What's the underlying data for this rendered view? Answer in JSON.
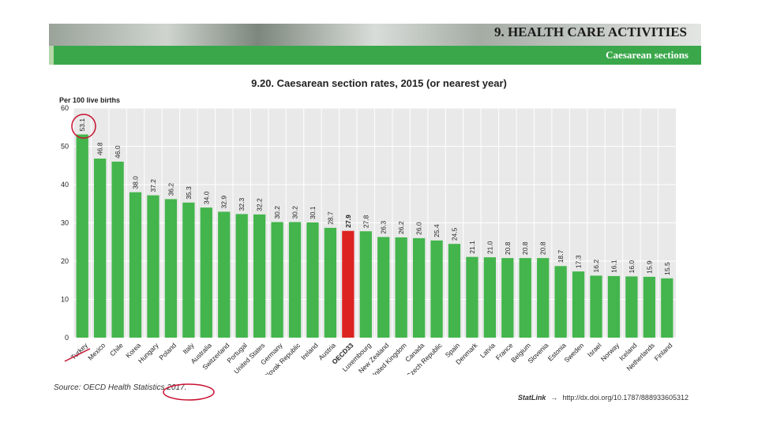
{
  "header": {
    "title": "9. HEALTH CARE ACTIVITIES",
    "subtitle": "Caesarean sections"
  },
  "chart_data": {
    "type": "bar",
    "title": "9.20. Caesarean section rates, 2015 (or nearest year)",
    "ylabel": "Per 100 live births",
    "xlabel": "",
    "ylim": [
      0,
      60
    ],
    "yticks": [
      0,
      10,
      20,
      30,
      40,
      50,
      60
    ],
    "grid": true,
    "categories": [
      "Turkey",
      "Mexico",
      "Chile",
      "Korea",
      "Hungary",
      "Poland",
      "Italy",
      "Australia",
      "Switzerland",
      "Portugal",
      "United States",
      "Germany",
      "Slovak Republic",
      "Ireland",
      "Austria",
      "OECD33",
      "Luxembourg",
      "New Zealand",
      "United Kingdom",
      "Canada",
      "Czech Republic",
      "Spain",
      "Denmark",
      "Latvia",
      "France",
      "Belgium",
      "Slovenia",
      "Estonia",
      "Sweden",
      "Israel",
      "Norway",
      "Iceland",
      "Netherlands",
      "Finland"
    ],
    "values": [
      53.1,
      46.8,
      46.0,
      38.0,
      37.2,
      36.2,
      35.3,
      34.0,
      32.9,
      32.3,
      32.2,
      30.2,
      30.2,
      30.1,
      28.7,
      27.9,
      27.8,
      26.3,
      26.2,
      26.0,
      25.4,
      24.5,
      21.1,
      21.0,
      20.8,
      20.8,
      20.8,
      18.7,
      17.3,
      16.2,
      16.1,
      16.0,
      15.9,
      15.5
    ],
    "value_labels": [
      "53.1",
      "46.8",
      "46.0",
      "38.0",
      "37.2",
      "36.2",
      "35.3",
      "34.0",
      "32.9",
      "32.3",
      "32.2",
      "30.2",
      "30.2",
      "30.1",
      "28.7",
      "27.9",
      "27.8",
      "26.3",
      "26.2",
      "26.0",
      "25.4",
      "24.5",
      "21.1",
      "21.0",
      "20.8",
      "20.8",
      "20.8",
      "18.7",
      "17.3",
      "16.2",
      "16.1",
      "16.0",
      "15.9",
      "15.5"
    ],
    "highlight": "OECD33",
    "colors": {
      "bar": "#43b54c",
      "highlight": "#dd2222",
      "plot_bg": "#e9e9e9",
      "grid": "#ffffff"
    }
  },
  "footer": {
    "source": "Source: OECD Health Statistics 2017.",
    "statlink_brand": "StatLink",
    "statlink_url": "http://dx.doi.org/10.1787/888933605312"
  },
  "annotations": {
    "color": "#c8102e"
  }
}
